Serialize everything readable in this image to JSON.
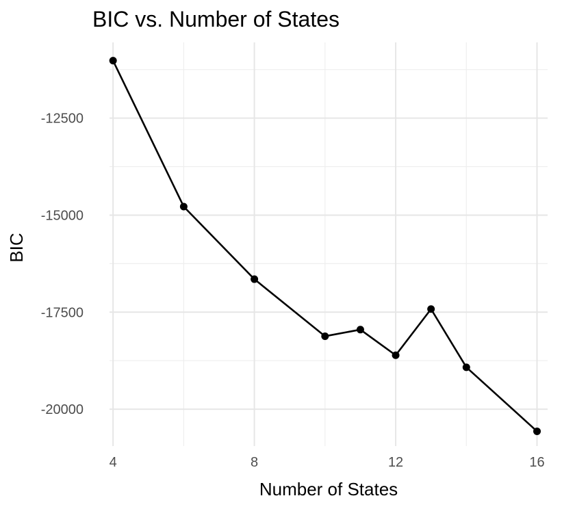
{
  "chart_data": {
    "type": "line",
    "title": "BIC vs. Number of States",
    "xlabel": "Number of States",
    "ylabel": "BIC",
    "x": [
      4,
      6,
      8,
      10,
      11,
      12,
      13,
      14,
      16
    ],
    "y": [
      -11020,
      -14780,
      -16650,
      -18120,
      -17950,
      -18610,
      -17420,
      -18920,
      -20570
    ],
    "xlim": [
      3.9,
      16.3
    ],
    "ylim": [
      -20950,
      -10550
    ],
    "x_ticks": [
      4,
      8,
      12,
      16
    ],
    "y_ticks": [
      -20000,
      -17500,
      -15000,
      -12500
    ],
    "grid": true,
    "legend": "none"
  }
}
